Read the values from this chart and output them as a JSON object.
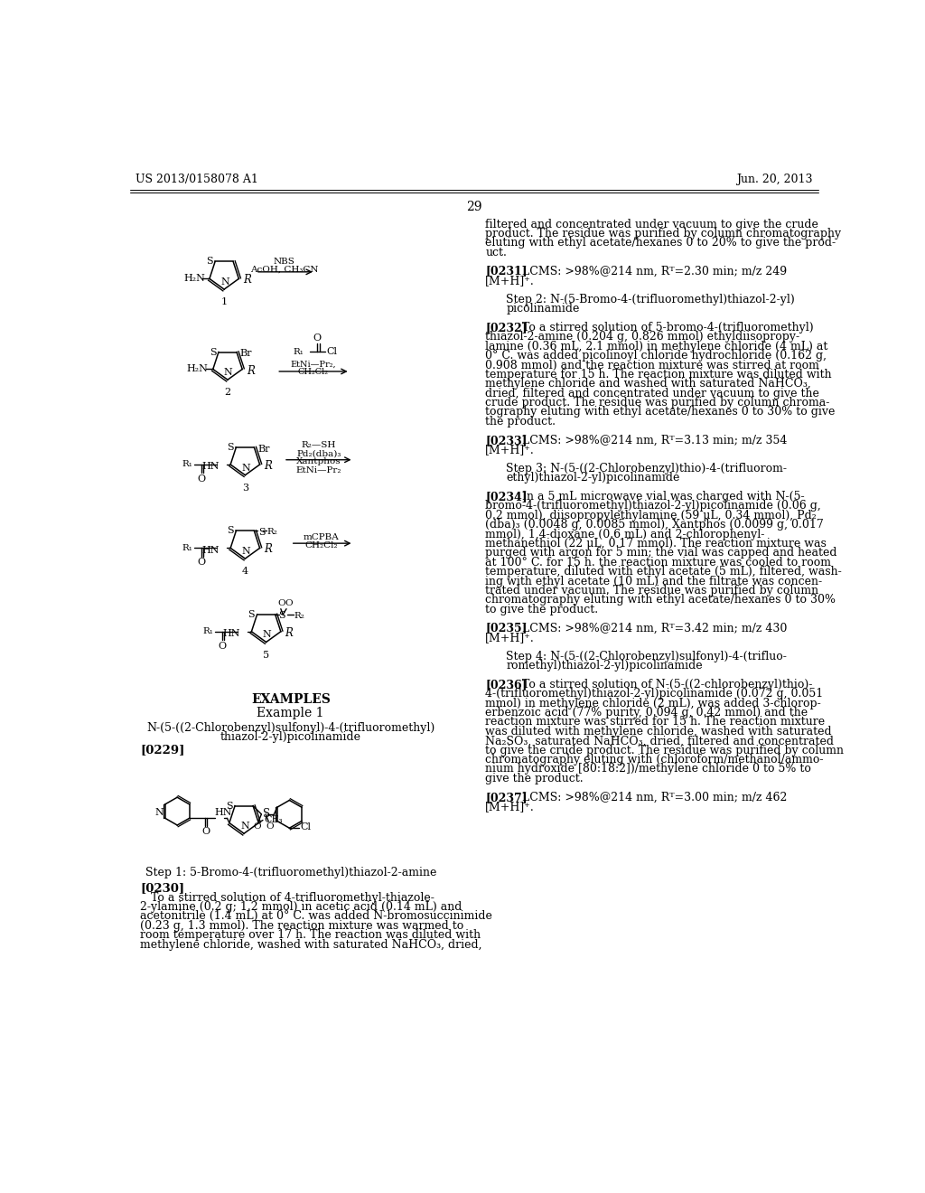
{
  "background_color": "#ffffff",
  "page_header_left": "US 2013/0158078 A1",
  "page_header_right": "Jun. 20, 2013",
  "page_number": "29"
}
